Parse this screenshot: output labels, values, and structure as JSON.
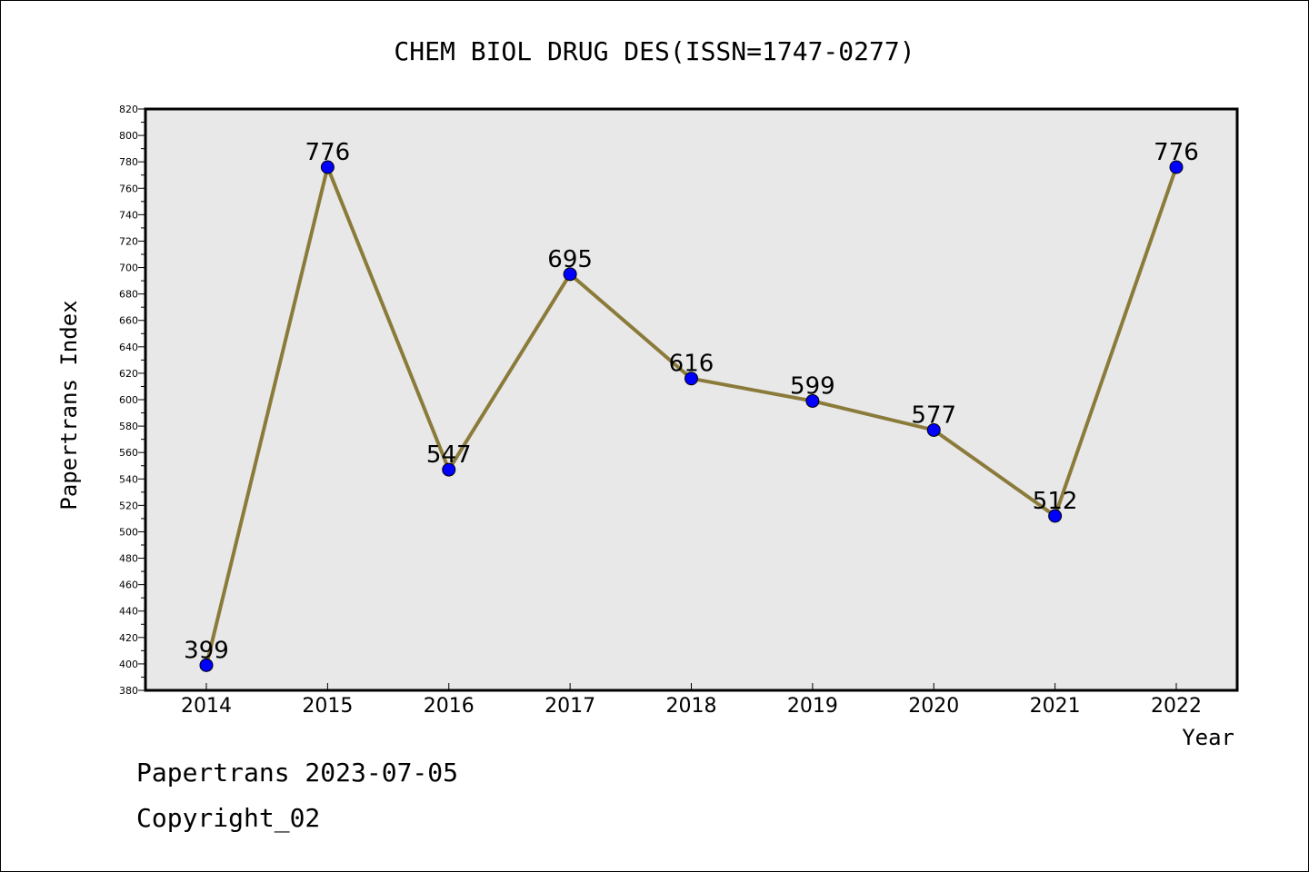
{
  "chart_data": {
    "type": "line",
    "title": "CHEM BIOL DRUG DES(ISSN=1747-0277)",
    "xlabel": "Year",
    "ylabel": "Papertrans Index",
    "categories": [
      "2014",
      "2015",
      "2016",
      "2017",
      "2018",
      "2019",
      "2020",
      "2021",
      "2022"
    ],
    "values": [
      399,
      776,
      547,
      695,
      616,
      599,
      577,
      512,
      776
    ],
    "ylim": [
      380,
      820
    ],
    "ytick_step": 20,
    "line_color": "#8b7b3a",
    "marker_color": "#0000ff",
    "plot_background": "#e8e8e8",
    "grid": false
  },
  "footer": {
    "line1": "Papertrans 2023-07-05",
    "line2": "Copyright_02"
  }
}
